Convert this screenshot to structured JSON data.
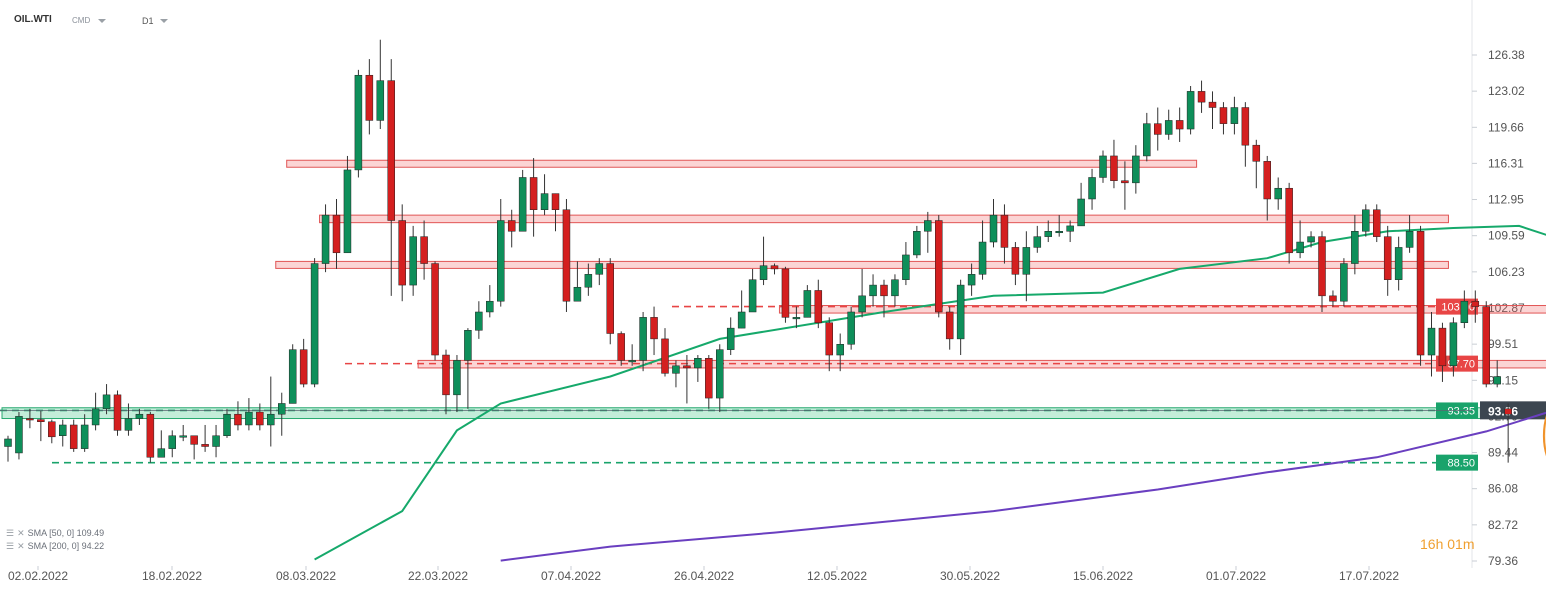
{
  "header": {
    "symbol": "OIL.WTI",
    "source": "CMD",
    "timeframe": "D1"
  },
  "indicators": [
    {
      "label": "SMA [50, 0] 109.49",
      "color": "#16a96b"
    },
    {
      "label": "SMA [200, 0] 94.22",
      "color": "#6a3fc0"
    }
  ],
  "timer": {
    "hours": "16",
    "h_unit": "h",
    "minutes": "01",
    "m_unit": "m"
  },
  "colors": {
    "up": "#0e8f5a",
    "down": "#d41f1f",
    "sma50": "#16a96b",
    "sma200": "#6a3fc0",
    "resistance": "#e84545",
    "support": "#19a36b"
  },
  "chart_data": {
    "type": "candlestick",
    "ylim": [
      79.36,
      127.8
    ],
    "y_ticks": [
      "126.38",
      "123.02",
      "119.66",
      "116.31",
      "112.95",
      "109.59",
      "106.23",
      "102.87",
      "99.51",
      "96.15",
      "92.79",
      "89.44",
      "86.08",
      "82.72",
      "79.36"
    ],
    "x_ticks": [
      "02.02.2022",
      "18.02.2022",
      "08.03.2022",
      "22.03.2022",
      "07.04.2022",
      "26.04.2022",
      "12.05.2022",
      "30.05.2022",
      "15.06.2022",
      "01.07.2022",
      "17.07.2022"
    ],
    "candles": [
      [
        90.0,
        90.7,
        91.0,
        88.6
      ],
      [
        89.4,
        92.8,
        93.2,
        88.8
      ],
      [
        92.6,
        92.5,
        93.5,
        91.7
      ],
      [
        92.5,
        92.3,
        93.3,
        90.5
      ],
      [
        92.3,
        90.9,
        92.5,
        90.3
      ],
      [
        91.0,
        92.0,
        92.5,
        90.0
      ],
      [
        92.0,
        89.8,
        92.5,
        89.5
      ],
      [
        89.8,
        92.0,
        93.0,
        89.5
      ],
      [
        92.0,
        93.5,
        95.0,
        91.5
      ],
      [
        93.5,
        94.8,
        95.8,
        93.0
      ],
      [
        94.8,
        91.5,
        95.2,
        91.0
      ],
      [
        91.5,
        92.6,
        94.0,
        91.0
      ],
      [
        92.6,
        93.0,
        93.5,
        92.0
      ],
      [
        93.0,
        89.0,
        93.2,
        88.5
      ],
      [
        89.0,
        89.8,
        91.5,
        89.0
      ],
      [
        89.8,
        91.0,
        91.5,
        89.0
      ],
      [
        91.0,
        91.0,
        92.0,
        90.5
      ],
      [
        91.0,
        90.2,
        91.0,
        88.8
      ],
      [
        90.2,
        90.0,
        92.0,
        89.5
      ],
      [
        90.0,
        91.0,
        92.0,
        89.0
      ],
      [
        91.0,
        93.0,
        93.5,
        90.8
      ],
      [
        93.0,
        92.0,
        94.2,
        91.5
      ],
      [
        92.0,
        93.2,
        94.5,
        91.5
      ],
      [
        93.2,
        92.0,
        94.0,
        91.5
      ],
      [
        92.0,
        93.0,
        96.5,
        90.0
      ],
      [
        93.0,
        94.0,
        95.0,
        91.0
      ],
      [
        94.0,
        99.0,
        99.5,
        94.0
      ],
      [
        99.0,
        95.8,
        100.0,
        95.5
      ],
      [
        95.8,
        107.0,
        107.5,
        95.5
      ],
      [
        107.0,
        111.5,
        112.5,
        106.2
      ],
      [
        111.5,
        108.0,
        113.0,
        106.5
      ],
      [
        108.0,
        115.7,
        117.0,
        108.0
      ],
      [
        115.7,
        124.5,
        125.0,
        115.0
      ],
      [
        124.5,
        120.3,
        126.0,
        119.0
      ],
      [
        120.3,
        124.0,
        127.8,
        119.5
      ],
      [
        124.0,
        111.0,
        126.0,
        104.0
      ],
      [
        111.0,
        105.0,
        112.5,
        103.5
      ],
      [
        105.0,
        109.5,
        110.5,
        104.0
      ],
      [
        109.5,
        107.0,
        111.0,
        105.5
      ],
      [
        107.0,
        98.5,
        107.2,
        98.0
      ],
      [
        98.5,
        94.8,
        99.0,
        93.0
      ],
      [
        94.8,
        98.0,
        98.5,
        93.2
      ],
      [
        98.0,
        100.8,
        101.0,
        93.5
      ],
      [
        100.8,
        102.5,
        103.5,
        100.0
      ],
      [
        102.5,
        103.5,
        105.0,
        102.0
      ],
      [
        103.5,
        111.0,
        113.0,
        103.0
      ],
      [
        111.0,
        110.0,
        112.0,
        108.5
      ],
      [
        110.0,
        115.0,
        115.7,
        110.0
      ],
      [
        115.0,
        112.0,
        116.8,
        109.5
      ],
      [
        112.0,
        113.5,
        115.3,
        111.5
      ],
      [
        113.5,
        112.0,
        113.5,
        110.0
      ],
      [
        112.0,
        103.5,
        113.0,
        102.5
      ],
      [
        103.5,
        104.8,
        107.2,
        104.0
      ],
      [
        104.8,
        106.0,
        107.0,
        104.0
      ],
      [
        106.0,
        107.0,
        107.5,
        105.0
      ],
      [
        107.0,
        100.5,
        107.5,
        99.5
      ],
      [
        100.5,
        98.0,
        100.7,
        97.5
      ],
      [
        98.0,
        98.0,
        99.5,
        97.5
      ],
      [
        98.0,
        102.0,
        102.5,
        97.0
      ],
      [
        102.0,
        100.0,
        103.0,
        98.5
      ],
      [
        100.0,
        96.8,
        101.0,
        96.5
      ],
      [
        96.8,
        97.5,
        98.0,
        95.5
      ],
      [
        97.5,
        97.3,
        98.5,
        94.0
      ],
      [
        97.3,
        98.2,
        98.5,
        96.0
      ],
      [
        98.2,
        94.5,
        98.5,
        93.5
      ],
      [
        94.5,
        99.0,
        99.5,
        93.2
      ],
      [
        99.0,
        101.0,
        102.0,
        98.5
      ],
      [
        101.0,
        102.5,
        104.5,
        101.0
      ],
      [
        102.5,
        105.5,
        106.5,
        102.5
      ],
      [
        105.5,
        106.8,
        109.5,
        105.0
      ],
      [
        106.8,
        106.5,
        107.0,
        106.0
      ],
      [
        106.5,
        102.0,
        106.7,
        101.5
      ],
      [
        102.0,
        102.0,
        103.0,
        101.0
      ],
      [
        102.0,
        104.5,
        105.0,
        102.0
      ],
      [
        104.5,
        101.5,
        105.5,
        101.0
      ],
      [
        101.5,
        98.5,
        102.0,
        97.0
      ],
      [
        98.5,
        99.5,
        100.5,
        97.0
      ],
      [
        99.5,
        102.5,
        103.0,
        99.0
      ],
      [
        102.5,
        104.0,
        106.5,
        102.0
      ],
      [
        104.0,
        105.0,
        106.0,
        103.0
      ],
      [
        105.0,
        104.0,
        105.5,
        102.0
      ],
      [
        104.0,
        105.5,
        106.0,
        103.0
      ],
      [
        105.5,
        107.8,
        109.0,
        105.0
      ],
      [
        107.8,
        110.0,
        110.5,
        107.5
      ],
      [
        110.0,
        111.0,
        111.8,
        108.0
      ],
      [
        111.0,
        102.5,
        111.5,
        102.0
      ],
      [
        102.5,
        100.0,
        103.0,
        99.0
      ],
      [
        100.0,
        105.0,
        105.5,
        98.5
      ],
      [
        105.0,
        106.0,
        107.0,
        104.0
      ],
      [
        106.0,
        109.0,
        111.0,
        105.5
      ],
      [
        109.0,
        111.5,
        113.0,
        108.5
      ],
      [
        111.5,
        108.5,
        112.5,
        107.0
      ],
      [
        108.5,
        106.0,
        109.0,
        105.0
      ],
      [
        106.0,
        108.5,
        110.0,
        103.5
      ],
      [
        108.5,
        109.5,
        110.5,
        108.0
      ],
      [
        109.5,
        110.0,
        111.0,
        109.0
      ],
      [
        110.0,
        110.0,
        111.5,
        109.5
      ],
      [
        110.0,
        110.5,
        111.0,
        109.0
      ],
      [
        110.5,
        113.0,
        114.5,
        110.5
      ],
      [
        113.0,
        115.0,
        115.8,
        112.0
      ],
      [
        115.0,
        117.0,
        117.5,
        114.5
      ],
      [
        117.0,
        114.7,
        118.5,
        114.0
      ],
      [
        114.7,
        114.5,
        116.5,
        112.0
      ],
      [
        114.5,
        117.0,
        118.0,
        113.5
      ],
      [
        117.0,
        120.0,
        121.0,
        116.5
      ],
      [
        120.0,
        119.0,
        121.5,
        117.5
      ],
      [
        119.0,
        120.3,
        121.3,
        118.5
      ],
      [
        120.3,
        119.5,
        121.5,
        118.3
      ],
      [
        119.5,
        123.0,
        123.5,
        119.0
      ],
      [
        123.0,
        122.0,
        124.0,
        121.0
      ],
      [
        122.0,
        121.5,
        123.0,
        119.5
      ],
      [
        121.5,
        120.0,
        122.0,
        119.0
      ],
      [
        120.0,
        121.5,
        122.5,
        119.0
      ],
      [
        121.5,
        118.0,
        122.0,
        116.0
      ],
      [
        118.0,
        116.5,
        118.5,
        114.0
      ],
      [
        116.5,
        113.0,
        117.0,
        111.0
      ],
      [
        113.0,
        114.0,
        115.0,
        112.0
      ],
      [
        114.0,
        108.0,
        114.5,
        107.0
      ],
      [
        108.0,
        109.0,
        111.0,
        107.5
      ],
      [
        109.0,
        109.5,
        110.0,
        108.5
      ],
      [
        109.5,
        104.0,
        110.0,
        102.5
      ],
      [
        104.0,
        103.5,
        104.5,
        103.0
      ],
      [
        103.5,
        107.0,
        107.5,
        103.0
      ],
      [
        107.0,
        110.0,
        111.5,
        106.0
      ],
      [
        110.0,
        112.0,
        112.5,
        109.5
      ],
      [
        112.0,
        109.5,
        112.5,
        109.0
      ],
      [
        109.5,
        105.5,
        110.5,
        104.0
      ],
      [
        105.5,
        108.5,
        109.5,
        104.5
      ],
      [
        108.5,
        110.0,
        111.5,
        108.0
      ],
      [
        110.0,
        98.5,
        110.5,
        97.5
      ],
      [
        98.5,
        101.0,
        102.5,
        96.5
      ],
      [
        101.0,
        97.5,
        101.5,
        96.0
      ],
      [
        97.5,
        101.5,
        102.0,
        96.5
      ],
      [
        101.5,
        103.5,
        104.5,
        101.0
      ],
      [
        103.5,
        103.0,
        104.5,
        101.5
      ],
      [
        103.0,
        95.8,
        103.5,
        95.5
      ],
      [
        95.8,
        96.5,
        98.0,
        95.5
      ],
      [
        93.5,
        93.0,
        94.0,
        88.5
      ]
    ],
    "sma50": [
      [
        28,
        79.5
      ],
      [
        36,
        84.0
      ],
      [
        41,
        91.5
      ],
      [
        45,
        94.0
      ],
      [
        55,
        96.5
      ],
      [
        65,
        100.0
      ],
      [
        80,
        102.5
      ],
      [
        90,
        104.0
      ],
      [
        100,
        104.3
      ],
      [
        107,
        106.5
      ],
      [
        115,
        107.5
      ],
      [
        120,
        109.0
      ],
      [
        126,
        110.0
      ],
      [
        132,
        110.3
      ],
      [
        138,
        110.5
      ],
      [
        141,
        109.5
      ]
    ],
    "sma200": [
      [
        45,
        79.4
      ],
      [
        55,
        80.7
      ],
      [
        70,
        82.0
      ],
      [
        90,
        84.0
      ],
      [
        105,
        86.0
      ],
      [
        115,
        87.6
      ],
      [
        125,
        89.0
      ],
      [
        135,
        91.4
      ],
      [
        141,
        93.3
      ],
      [
        143,
        93.7
      ]
    ],
    "levels": [
      {
        "value": 103.0,
        "label": "103.00",
        "kind": "resistance"
      },
      {
        "value": 97.7,
        "label": "97.70",
        "kind": "resistance"
      },
      {
        "value": 93.35,
        "label": "93.35",
        "kind": "support"
      },
      {
        "value": 88.5,
        "label": "88.50",
        "kind": "support"
      }
    ],
    "zones": [
      {
        "from_index": 26,
        "to_index": 108,
        "low": 116.0,
        "high": 116.6,
        "kind": "resistance"
      },
      {
        "from_index": 29,
        "to_index": 131,
        "low": 110.8,
        "high": 111.5,
        "kind": "resistance"
      },
      {
        "from_index": 25,
        "to_index": 131,
        "low": 106.7,
        "high": 107.2,
        "kind": "resistance"
      },
      {
        "from_index": 71,
        "to_index": 141,
        "low": 102.4,
        "high": 103.1,
        "kind": "resistance"
      },
      {
        "from_index": 38,
        "to_index": 143,
        "low": 97.3,
        "high": 98.0,
        "kind": "resistance"
      },
      {
        "from_index": 0,
        "to_index": 146,
        "low": 92.6,
        "high": 93.6,
        "kind": "support"
      }
    ],
    "last_price": "93.36",
    "highlight": {
      "index": 142,
      "low": 87.8,
      "high": 94.2
    }
  }
}
